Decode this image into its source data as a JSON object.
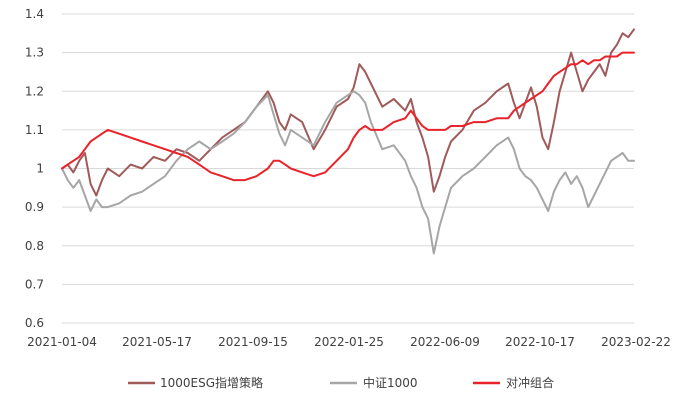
{
  "chart_data": {
    "type": "line",
    "title": "",
    "xlabel": "",
    "ylabel": "",
    "x_tick_labels": [
      "2021-01-04",
      "2021-05-17",
      "2021-09-15",
      "2022-01-25",
      "2022-06-09",
      "2022-10-17",
      "2023-02-22"
    ],
    "y_tick_labels": [
      "0.6",
      "0.7",
      "0.8",
      "0.9",
      "1",
      "1.1",
      "1.2",
      "1.3",
      "1.4"
    ],
    "ylim": [
      0.6,
      1.4
    ],
    "grid": "horizontal",
    "legend_position": "bottom",
    "series": [
      {
        "name": "1000ESG指增策略",
        "color": "#a05a5a",
        "x": [
          0,
          0.01,
          0.02,
          0.03,
          0.04,
          0.05,
          0.06,
          0.07,
          0.08,
          0.1,
          0.12,
          0.14,
          0.16,
          0.18,
          0.2,
          0.22,
          0.24,
          0.26,
          0.28,
          0.3,
          0.32,
          0.34,
          0.36,
          0.37,
          0.38,
          0.39,
          0.4,
          0.42,
          0.44,
          0.46,
          0.48,
          0.5,
          0.51,
          0.52,
          0.53,
          0.54,
          0.56,
          0.58,
          0.6,
          0.61,
          0.62,
          0.63,
          0.64,
          0.65,
          0.66,
          0.67,
          0.68,
          0.7,
          0.72,
          0.74,
          0.76,
          0.78,
          0.79,
          0.8,
          0.81,
          0.82,
          0.83,
          0.84,
          0.85,
          0.86,
          0.87,
          0.88,
          0.89,
          0.9,
          0.91,
          0.92,
          0.93,
          0.94,
          0.95,
          0.96,
          0.97,
          0.98,
          0.99,
          1.0
        ],
        "y": [
          1.0,
          1.01,
          0.99,
          1.02,
          1.04,
          0.96,
          0.93,
          0.97,
          1.0,
          0.98,
          1.01,
          1.0,
          1.03,
          1.02,
          1.05,
          1.04,
          1.02,
          1.05,
          1.08,
          1.1,
          1.12,
          1.16,
          1.2,
          1.17,
          1.12,
          1.1,
          1.14,
          1.12,
          1.05,
          1.1,
          1.16,
          1.18,
          1.21,
          1.27,
          1.25,
          1.22,
          1.16,
          1.18,
          1.15,
          1.18,
          1.12,
          1.08,
          1.03,
          0.94,
          0.98,
          1.03,
          1.07,
          1.1,
          1.15,
          1.17,
          1.2,
          1.22,
          1.17,
          1.13,
          1.17,
          1.21,
          1.16,
          1.08,
          1.05,
          1.12,
          1.2,
          1.25,
          1.3,
          1.25,
          1.2,
          1.23,
          1.25,
          1.27,
          1.24,
          1.3,
          1.32,
          1.35,
          1.34,
          1.36
        ]
      },
      {
        "name": "中证1000",
        "color": "#a6a6a6",
        "x": [
          0,
          0.01,
          0.02,
          0.03,
          0.04,
          0.05,
          0.06,
          0.07,
          0.08,
          0.1,
          0.12,
          0.14,
          0.16,
          0.18,
          0.2,
          0.22,
          0.24,
          0.26,
          0.28,
          0.3,
          0.32,
          0.34,
          0.36,
          0.37,
          0.38,
          0.39,
          0.4,
          0.42,
          0.44,
          0.46,
          0.48,
          0.5,
          0.51,
          0.52,
          0.53,
          0.54,
          0.56,
          0.58,
          0.6,
          0.61,
          0.62,
          0.63,
          0.64,
          0.65,
          0.66,
          0.67,
          0.68,
          0.7,
          0.72,
          0.74,
          0.76,
          0.78,
          0.79,
          0.8,
          0.81,
          0.82,
          0.83,
          0.84,
          0.85,
          0.86,
          0.87,
          0.88,
          0.89,
          0.9,
          0.91,
          0.92,
          0.93,
          0.94,
          0.95,
          0.96,
          0.97,
          0.98,
          0.99,
          1.0
        ],
        "y": [
          1.0,
          0.97,
          0.95,
          0.97,
          0.93,
          0.89,
          0.92,
          0.9,
          0.9,
          0.91,
          0.93,
          0.94,
          0.96,
          0.98,
          1.02,
          1.05,
          1.07,
          1.05,
          1.07,
          1.09,
          1.12,
          1.16,
          1.19,
          1.14,
          1.09,
          1.06,
          1.1,
          1.08,
          1.06,
          1.12,
          1.17,
          1.19,
          1.2,
          1.19,
          1.17,
          1.12,
          1.05,
          1.06,
          1.02,
          0.98,
          0.95,
          0.9,
          0.87,
          0.78,
          0.85,
          0.9,
          0.95,
          0.98,
          1.0,
          1.03,
          1.06,
          1.08,
          1.05,
          1.0,
          0.98,
          0.97,
          0.95,
          0.92,
          0.89,
          0.94,
          0.97,
          0.99,
          0.96,
          0.98,
          0.95,
          0.9,
          0.93,
          0.96,
          0.99,
          1.02,
          1.03,
          1.04,
          1.02,
          1.02
        ]
      },
      {
        "name": "对冲组合",
        "color": "#e8232a",
        "x": [
          0,
          0.01,
          0.02,
          0.03,
          0.04,
          0.05,
          0.06,
          0.07,
          0.08,
          0.1,
          0.12,
          0.14,
          0.16,
          0.18,
          0.2,
          0.22,
          0.24,
          0.26,
          0.28,
          0.3,
          0.32,
          0.34,
          0.36,
          0.37,
          0.38,
          0.39,
          0.4,
          0.42,
          0.44,
          0.46,
          0.48,
          0.5,
          0.51,
          0.52,
          0.53,
          0.54,
          0.56,
          0.58,
          0.6,
          0.61,
          0.62,
          0.63,
          0.64,
          0.65,
          0.66,
          0.67,
          0.68,
          0.7,
          0.72,
          0.74,
          0.76,
          0.78,
          0.79,
          0.8,
          0.81,
          0.82,
          0.83,
          0.84,
          0.85,
          0.86,
          0.87,
          0.88,
          0.89,
          0.9,
          0.91,
          0.92,
          0.93,
          0.94,
          0.95,
          0.96,
          0.97,
          0.98,
          0.99,
          1.0
        ],
        "y": [
          1.0,
          1.01,
          1.02,
          1.03,
          1.05,
          1.07,
          1.08,
          1.09,
          1.1,
          1.09,
          1.08,
          1.07,
          1.06,
          1.05,
          1.04,
          1.03,
          1.01,
          0.99,
          0.98,
          0.97,
          0.97,
          0.98,
          1.0,
          1.02,
          1.02,
          1.01,
          1.0,
          0.99,
          0.98,
          0.99,
          1.02,
          1.05,
          1.08,
          1.1,
          1.11,
          1.1,
          1.1,
          1.12,
          1.13,
          1.15,
          1.13,
          1.11,
          1.1,
          1.1,
          1.1,
          1.1,
          1.11,
          1.11,
          1.12,
          1.12,
          1.13,
          1.13,
          1.15,
          1.16,
          1.17,
          1.18,
          1.19,
          1.2,
          1.22,
          1.24,
          1.25,
          1.26,
          1.27,
          1.27,
          1.28,
          1.27,
          1.28,
          1.28,
          1.29,
          1.29,
          1.29,
          1.3,
          1.3,
          1.3
        ]
      }
    ]
  }
}
